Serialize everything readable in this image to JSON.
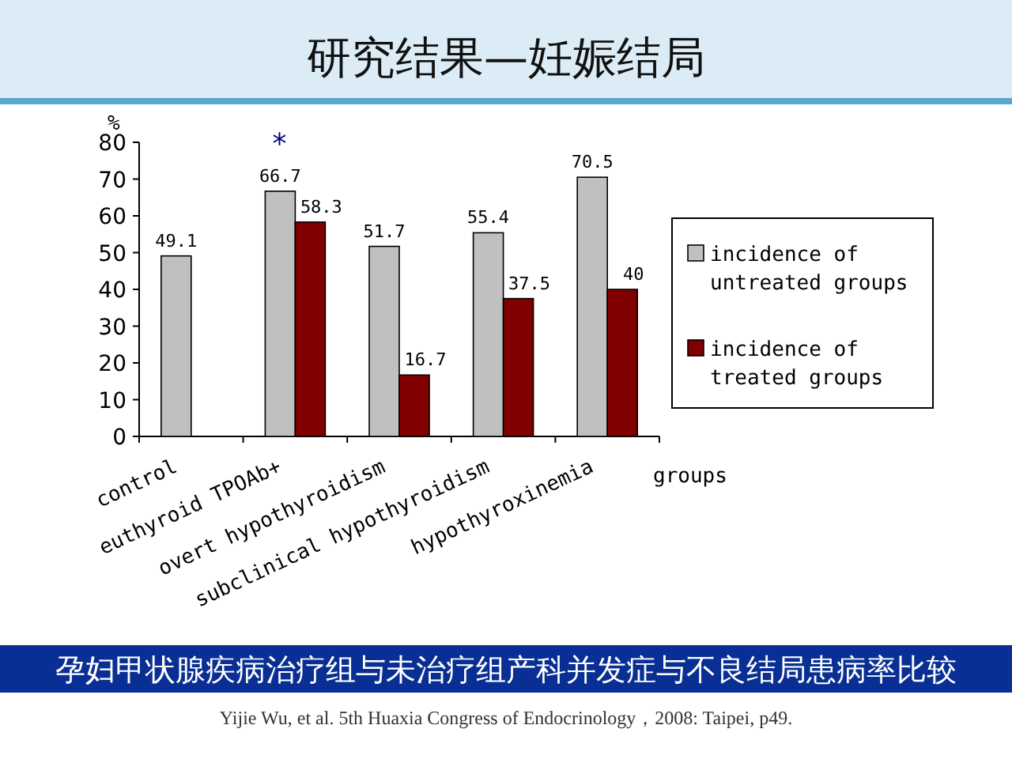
{
  "chart_data": {
    "type": "bar",
    "title": "研究结果—妊娠结局",
    "subtitle": "孕妇甲状腺疾病治疗组与未治疗组产科并发症与不良结局患病率比较",
    "xlabel": "groups",
    "ylabel": "%",
    "categories": [
      "control",
      "euthyroid TPOAb+",
      "overt hypothyroidism",
      "subclinical hypothyroidism",
      "hypothyroxinemia"
    ],
    "series": [
      {
        "name": "incidence of untreated groups",
        "color": "#c0c0c0",
        "values": [
          49.1,
          66.7,
          51.7,
          55.4,
          70.5
        ]
      },
      {
        "name": "incidence of treated groups",
        "color": "#800000",
        "values": [
          null,
          58.3,
          16.7,
          37.5,
          40
        ]
      }
    ],
    "ylim": [
      0,
      80
    ],
    "yticks": [
      0,
      10,
      20,
      30,
      40,
      50,
      60,
      70,
      80
    ],
    "data_labels": true,
    "legend": "right",
    "annotations": [
      {
        "text": "*",
        "x": "euthyroid TPOAb+",
        "y": 66.7
      },
      "Yijie Wu, et al. 5th Huaxia Congress of Endocrinology，2008: Taipei, p49."
    ]
  }
}
